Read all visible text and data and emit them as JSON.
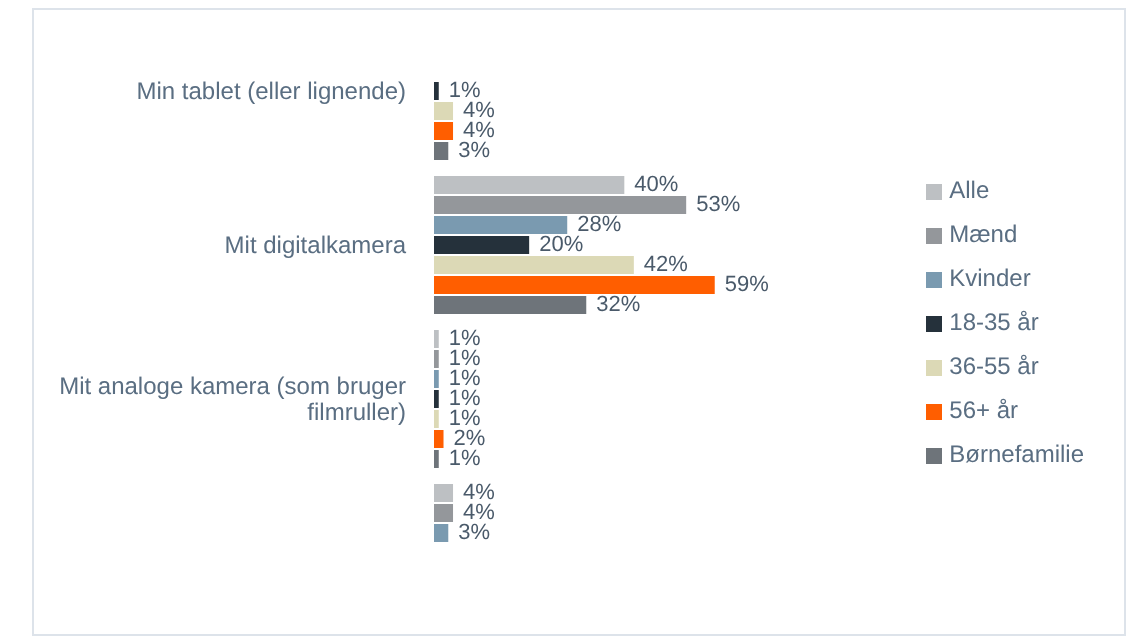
{
  "chart_data": {
    "type": "bar",
    "orientation": "horizontal",
    "data_labels": true,
    "legend": "right",
    "grid": false,
    "categories": [
      "Min tablet (eller lignende)",
      "Mit digitalkamera",
      "Mit analoge kamera (som bruger filmruller)",
      null
    ],
    "series": [
      {
        "name": "Alle",
        "color": "#bdc0c3",
        "values": [
          null,
          40,
          1,
          4
        ],
        "value_labels": [
          null,
          "40%",
          "1%",
          "4%"
        ]
      },
      {
        "name": "Mænd",
        "color": "#94979b",
        "values": [
          null,
          53,
          1,
          4
        ],
        "value_labels": [
          null,
          "53%",
          "1%",
          "4%"
        ]
      },
      {
        "name": "Kvinder",
        "color": "#7a9ab0",
        "values": [
          null,
          28,
          1,
          3
        ],
        "value_labels": [
          null,
          "28%",
          "1%",
          "3%"
        ]
      },
      {
        "name": "18-35 år",
        "color": "#25313b",
        "values": [
          1,
          20,
          1,
          null
        ],
        "value_labels": [
          "1%",
          "20%",
          "1%",
          null
        ]
      },
      {
        "name": "36-55 år",
        "color": "#dcd9b6",
        "values": [
          4,
          42,
          1,
          null
        ],
        "value_labels": [
          "4%",
          "42%",
          "1%",
          null
        ]
      },
      {
        "name": "56+ år",
        "color": "#ff5e00",
        "values": [
          4,
          59,
          2,
          null
        ],
        "value_labels": [
          "4%",
          "59%",
          "2%",
          null
        ]
      },
      {
        "name": "Børnefamilie",
        "color": "#6e747a",
        "values": [
          3,
          32,
          1,
          null
        ],
        "value_labels": [
          "3%",
          "32%",
          "1%",
          null
        ]
      }
    ]
  }
}
